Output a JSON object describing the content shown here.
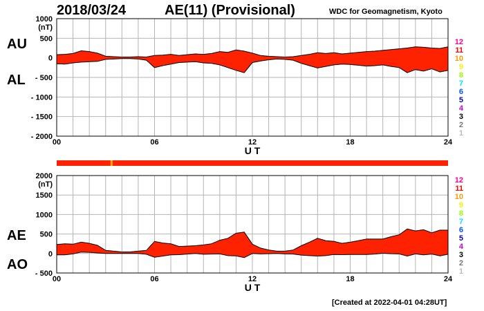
{
  "header": {
    "date": "2018/03/24",
    "title": "AE(11) (Provisional)",
    "source": "WDC for Geomagnetism, Kyoto"
  },
  "footer": {
    "created": "[Created at 2022-04-01 04:28UT]"
  },
  "colors": {
    "fill": "#ff2200",
    "outline": "#000000",
    "grid": "#b4b4b4",
    "strip_normal": "#ff2200",
    "strip_alt": "#ffaa00"
  },
  "station_legend": [
    {
      "label": "12",
      "color": "#ff0099"
    },
    {
      "label": "11",
      "color": "#ff0000"
    },
    {
      "label": "10",
      "color": "#ff9900"
    },
    {
      "label": "9",
      "color": "#ffee00"
    },
    {
      "label": "8",
      "color": "#99ff00"
    },
    {
      "label": "7",
      "color": "#00e5ff"
    },
    {
      "label": "6",
      "color": "#0055ff"
    },
    {
      "label": "5",
      "color": "#0000aa"
    },
    {
      "label": "4",
      "color": "#cc00cc"
    },
    {
      "label": "3",
      "color": "#000000"
    },
    {
      "label": "2",
      "color": "#777777"
    },
    {
      "label": "1",
      "color": "#bbbbbb"
    }
  ],
  "chart_data": [
    {
      "type": "area",
      "name": "AU/AL",
      "top_label": "AU",
      "bottom_label": "AL",
      "unit": "(nT)",
      "xlabel": "U T",
      "xlim": [
        0,
        24
      ],
      "ylim": [
        -2000,
        1000
      ],
      "yticks": [
        1000,
        500,
        0,
        -500,
        -1000,
        -1500,
        -2000
      ],
      "ytick_labels": [
        "1000",
        "500",
        "0",
        "- 500",
        "- 1000",
        "- 1500",
        "- 2000"
      ],
      "xticks": [
        0,
        6,
        12,
        18,
        24
      ],
      "xtick_labels": [
        "00",
        "06",
        "12",
        "18",
        "24"
      ],
      "grid": true,
      "x": [
        0,
        0.5,
        1,
        1.5,
        2,
        2.5,
        3,
        3.5,
        4,
        4.5,
        5,
        5.5,
        6,
        6.5,
        7,
        7.5,
        8,
        8.5,
        9,
        9.5,
        10,
        10.5,
        11,
        11.5,
        12,
        12.5,
        13,
        13.5,
        14,
        14.5,
        15,
        15.5,
        16,
        16.5,
        17,
        17.5,
        18,
        18.5,
        19,
        19.5,
        20,
        20.5,
        21,
        21.5,
        22,
        22.5,
        23,
        23.5,
        24
      ],
      "series": [
        {
          "name": "AU",
          "values": [
            80,
            90,
            110,
            180,
            160,
            120,
            40,
            30,
            20,
            20,
            30,
            20,
            60,
            70,
            90,
            60,
            80,
            100,
            90,
            110,
            160,
            140,
            200,
            170,
            120,
            60,
            40,
            30,
            20,
            30,
            60,
            90,
            130,
            110,
            130,
            100,
            120,
            140,
            160,
            170,
            190,
            210,
            230,
            250,
            280,
            270,
            250,
            240,
            280
          ]
        },
        {
          "name": "AL",
          "values": [
            -150,
            -160,
            -130,
            -110,
            -100,
            -90,
            -40,
            -30,
            -20,
            -20,
            -30,
            -60,
            -250,
            -200,
            -160,
            -120,
            -110,
            -100,
            -130,
            -140,
            -180,
            -250,
            -320,
            -380,
            -120,
            -80,
            -50,
            -30,
            -40,
            -60,
            -140,
            -200,
            -260,
            -220,
            -180,
            -160,
            -170,
            -190,
            -210,
            -200,
            -180,
            -220,
            -250,
            -380,
            -300,
            -340,
            -280,
            -360,
            -320
          ]
        }
      ]
    },
    {
      "type": "area",
      "name": "AE/AO",
      "top_label": "AE",
      "bottom_label": "AO",
      "unit": "(nT)",
      "xlabel": "U T",
      "xlim": [
        0,
        24
      ],
      "ylim": [
        -500,
        2000
      ],
      "yticks": [
        2000,
        1500,
        1000,
        500,
        0,
        -500
      ],
      "ytick_labels": [
        "2000",
        "1500",
        "1000",
        "500",
        "0",
        "- 500"
      ],
      "xticks": [
        0,
        6,
        12,
        18,
        24
      ],
      "xtick_labels": [
        "00",
        "06",
        "12",
        "18",
        "24"
      ],
      "grid": true,
      "x": [
        0,
        0.5,
        1,
        1.5,
        2,
        2.5,
        3,
        3.5,
        4,
        4.5,
        5,
        5.5,
        6,
        6.5,
        7,
        7.5,
        8,
        8.5,
        9,
        9.5,
        10,
        10.5,
        11,
        11.5,
        12,
        12.5,
        13,
        13.5,
        14,
        14.5,
        15,
        15.5,
        16,
        16.5,
        17,
        17.5,
        18,
        18.5,
        19,
        19.5,
        20,
        20.5,
        21,
        21.5,
        22,
        22.5,
        23,
        23.5,
        24
      ],
      "series": [
        {
          "name": "AE",
          "values": [
            230,
            250,
            240,
            290,
            260,
            210,
            80,
            60,
            40,
            40,
            60,
            80,
            310,
            270,
            250,
            180,
            190,
            200,
            220,
            250,
            340,
            390,
            520,
            550,
            240,
            140,
            90,
            60,
            60,
            90,
            200,
            290,
            390,
            330,
            310,
            260,
            290,
            330,
            370,
            370,
            370,
            430,
            480,
            630,
            580,
            610,
            530,
            600,
            600
          ]
        },
        {
          "name": "AO",
          "values": [
            -35,
            -35,
            -10,
            35,
            30,
            15,
            0,
            0,
            0,
            0,
            0,
            -20,
            -95,
            -65,
            -35,
            -30,
            -15,
            0,
            -20,
            -15,
            -10,
            -55,
            -60,
            -105,
            0,
            -10,
            -5,
            0,
            -10,
            -15,
            -40,
            -55,
            -65,
            -55,
            -25,
            -30,
            -25,
            -25,
            -25,
            -15,
            5,
            -5,
            -10,
            -65,
            -10,
            -35,
            -15,
            -60,
            -20
          ]
        }
      ]
    }
  ]
}
